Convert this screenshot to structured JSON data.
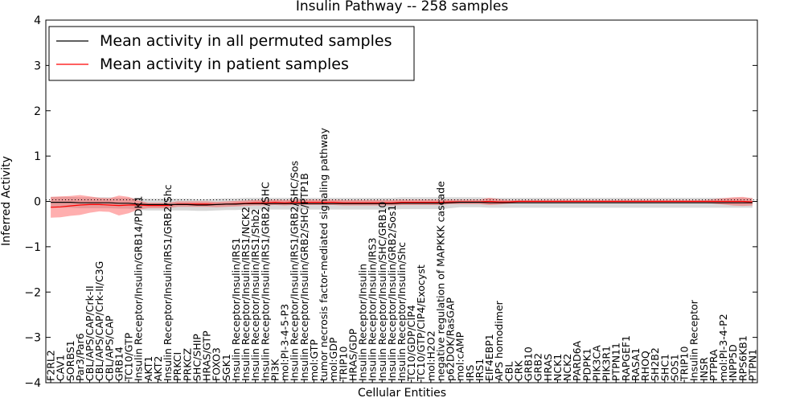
{
  "chart_data": {
    "type": "line",
    "title": "Insulin Pathway -- 258 samples",
    "xlabel": "Cellular Entities",
    "ylabel": "Inferred Activity",
    "ylim": [
      -4,
      4
    ],
    "yticks": [
      "4",
      "3",
      "2",
      "1",
      "0",
      "−1",
      "−2",
      "−3",
      "−4"
    ],
    "baseline": 0,
    "legend": {
      "position": "top-left",
      "entries": [
        {
          "label": "Mean activity in all permuted samples",
          "color": "#000000"
        },
        {
          "label": "Mean activity in patient samples",
          "color": "#ff0000"
        }
      ]
    },
    "categories": [
      "F2RL2",
      "CAV1",
      "SORBS1",
      "Par3/Par6",
      "CBL/APS/CAP/Crk-II",
      "CBL/APS/CAP/Crk-II/C3G",
      "CBL/APS/CAP",
      "GRB14",
      "TC10/GTP",
      "Insulin Receptor/Insulin/GRB14/PDK1",
      "AKT1",
      "AKT2",
      "Insulin Receptor/Insulin/IRS1/GRB2/Shc",
      "PRKCI",
      "PRKCZ",
      "SHC/SHIP",
      "HRAS/GTP",
      "FOXO3",
      "SGK1",
      "Insulin Receptor/Insulin/IRS1",
      "Insulin Receptor/Insulin/IRS1/NCK2",
      "Insulin Receptor/Insulin/IRS1/Shb2",
      "Insulin Receptor/Insulin/IRS1/GRB2/SHC",
      "PI3K",
      "mol:PI-3-4-5-P3",
      "Insulin Receptor/Insulin/IRS1/GRB2/SHC/Sos",
      "Insulin Receptor/Insulin/GRB2/SHC/PTP1B",
      "mol:GTP",
      "tumor necrosis factor-mediated signaling pathway",
      "mol:GDP",
      "TRIP10",
      "HRAS/GDP",
      "Insulin Receptor/Insulin",
      "Insulin Receptor/Insulin/IRS3",
      "Insulin Receptor/Insulin/SHC/GRB10",
      "Insulin Receptor/Insulin/GRB2/Sos1",
      "Insulin Receptor/Insulin/Shc",
      "TC10/GDP/CIP4",
      "TC10/GTP/CIP4/Exocyst",
      "mol:H2O2",
      "negative regulation of MAPKKK cascade",
      "p62DOK/RasGAP",
      "mol:cAMP",
      "IRS",
      "IRS1",
      "EIF4EBP1",
      "APS homodimer",
      "CBL",
      "CRK",
      "GRB10",
      "GRB2",
      "HRAS",
      "NCK1",
      "NCK2",
      "PARD6A",
      "PDPK1",
      "PIK3CA",
      "PIK3R1",
      "PTPN11",
      "RAPGEF1",
      "RASA1",
      "RHOQ",
      "SH2B2",
      "SHC1",
      "SOS1",
      "TRIP10",
      "Insulin Receptor",
      "INSR",
      "PTPRA",
      "mol:PI-3-4-P2",
      "INPP5D",
      "RPS6KB1",
      "PTPN1"
    ],
    "series": [
      {
        "name": "Mean activity in all permuted samples",
        "color": "#000000",
        "values": [
          -0.02,
          -0.02,
          -0.02,
          -0.03,
          -0.03,
          -0.03,
          -0.03,
          -0.04,
          -0.04,
          -0.06,
          -0.07,
          -0.07,
          -0.07,
          -0.07,
          -0.07,
          -0.08,
          -0.08,
          -0.07,
          -0.06,
          -0.06,
          -0.05,
          -0.05,
          -0.05,
          -0.05,
          -0.05,
          -0.05,
          -0.05,
          -0.05,
          -0.05,
          -0.05,
          -0.05,
          -0.05,
          -0.05,
          -0.05,
          -0.05,
          -0.05,
          -0.04,
          -0.04,
          -0.04,
          -0.04,
          -0.04,
          -0.03,
          -0.02,
          -0.02,
          -0.02,
          -0.03,
          -0.03,
          -0.03,
          -0.03,
          -0.03,
          -0.03,
          -0.03,
          -0.03,
          -0.03,
          -0.03,
          -0.03,
          -0.03,
          -0.03,
          -0.03,
          -0.03,
          -0.03,
          -0.03,
          -0.03,
          -0.03,
          -0.03,
          -0.03,
          -0.03,
          -0.03,
          -0.03,
          -0.03,
          -0.03,
          -0.03,
          -0.03
        ],
        "band": [
          0.12,
          0.12,
          0.12,
          0.12,
          0.12,
          0.12,
          0.12,
          0.12,
          0.12,
          0.13,
          0.13,
          0.13,
          0.13,
          0.13,
          0.13,
          0.13,
          0.13,
          0.13,
          0.13,
          0.13,
          0.13,
          0.13,
          0.13,
          0.13,
          0.13,
          0.13,
          0.13,
          0.13,
          0.13,
          0.13,
          0.13,
          0.13,
          0.13,
          0.13,
          0.13,
          0.13,
          0.13,
          0.13,
          0.13,
          0.13,
          0.13,
          0.12,
          0.11,
          0.11,
          0.11,
          0.11,
          0.11,
          0.11,
          0.11,
          0.11,
          0.11,
          0.11,
          0.11,
          0.11,
          0.11,
          0.11,
          0.11,
          0.11,
          0.11,
          0.11,
          0.11,
          0.11,
          0.11,
          0.11,
          0.11,
          0.11,
          0.11,
          0.11,
          0.11,
          0.11,
          0.11,
          0.11,
          0.11
        ]
      },
      {
        "name": "Mean activity in patient samples",
        "color": "#ff0000",
        "values": [
          -0.13,
          -0.12,
          -0.1,
          -0.08,
          -0.07,
          -0.07,
          -0.08,
          -0.09,
          -0.08,
          -0.08,
          -0.09,
          -0.09,
          -0.09,
          -0.06,
          -0.06,
          -0.06,
          -0.06,
          -0.07,
          -0.06,
          -0.05,
          -0.04,
          -0.03,
          -0.03,
          -0.02,
          -0.03,
          -0.02,
          -0.02,
          -0.02,
          -0.02,
          -0.02,
          -0.03,
          -0.03,
          -0.03,
          -0.03,
          -0.03,
          -0.03,
          -0.02,
          -0.02,
          -0.02,
          -0.02,
          -0.02,
          -0.01,
          -0.01,
          -0.01,
          -0.01,
          0.0,
          -0.01,
          -0.01,
          0.0,
          0.0,
          0.0,
          0.0,
          0.0,
          0.0,
          0.0,
          0.0,
          0.0,
          0.0,
          0.0,
          0.0,
          0.0,
          0.0,
          0.0,
          0.0,
          0.0,
          0.0,
          0.0,
          0.0,
          0.0,
          0.0,
          0.0,
          0.0,
          -0.01
        ],
        "band": [
          0.23,
          0.23,
          0.22,
          0.22,
          0.18,
          0.15,
          0.15,
          0.22,
          0.18,
          0.1,
          0.06,
          0.06,
          0.06,
          0.06,
          0.06,
          0.06,
          0.06,
          0.06,
          0.06,
          0.06,
          0.06,
          0.06,
          0.06,
          0.06,
          0.06,
          0.06,
          0.06,
          0.06,
          0.06,
          0.06,
          0.06,
          0.06,
          0.06,
          0.06,
          0.06,
          0.06,
          0.06,
          0.06,
          0.06,
          0.06,
          0.06,
          0.05,
          0.05,
          0.05,
          0.05,
          0.08,
          0.06,
          0.04,
          0.03,
          0.03,
          0.03,
          0.03,
          0.03,
          0.03,
          0.03,
          0.03,
          0.03,
          0.03,
          0.03,
          0.03,
          0.03,
          0.03,
          0.03,
          0.03,
          0.03,
          0.03,
          0.03,
          0.03,
          0.05,
          0.07,
          0.09,
          0.1,
          0.08
        ]
      }
    ]
  }
}
